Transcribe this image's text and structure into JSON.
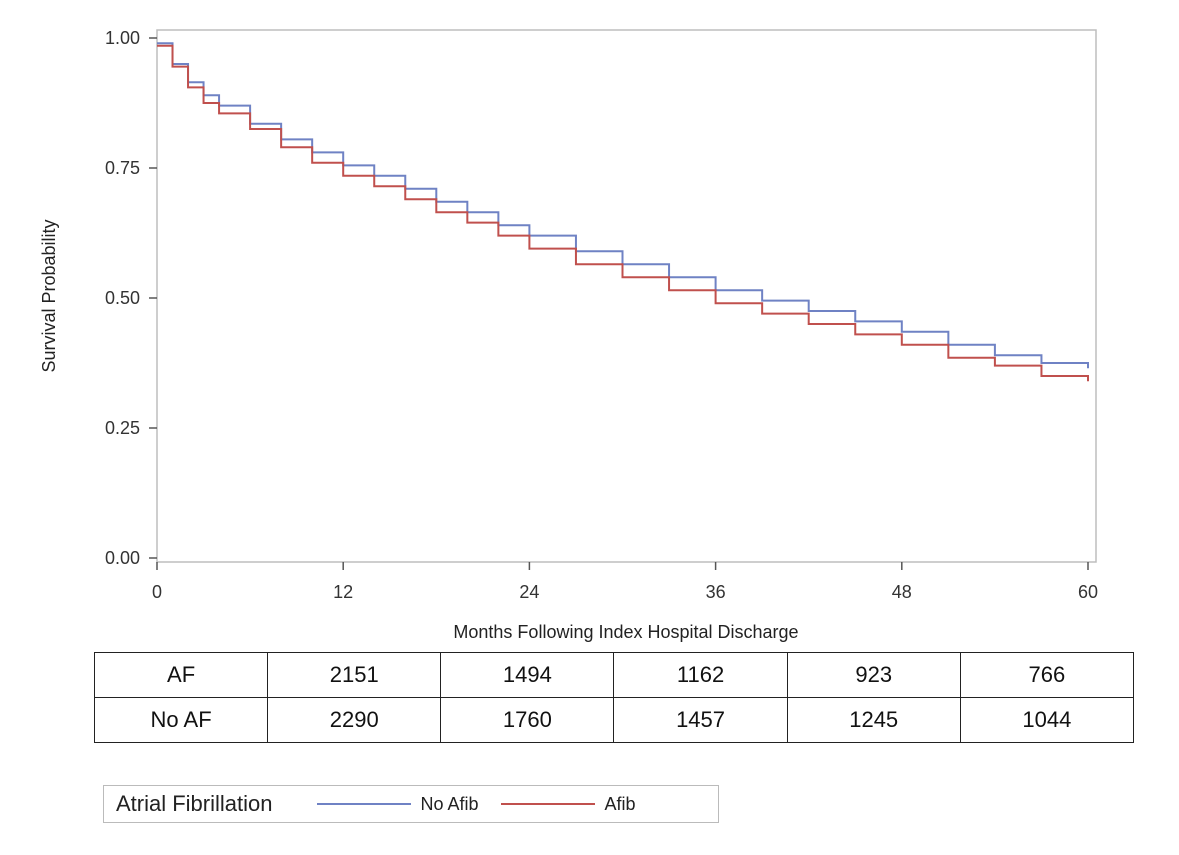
{
  "chart_data": {
    "type": "line",
    "step": true,
    "xlabel": "Months Following Index Hospital Discharge",
    "ylabel": "Survival Probability",
    "xlim": [
      0,
      60
    ],
    "ylim": [
      0,
      1
    ],
    "xticks": [
      0,
      12,
      24,
      36,
      48,
      60
    ],
    "yticks": [
      "0.00",
      "0.25",
      "0.50",
      "0.75",
      "1.00"
    ],
    "grid": false,
    "series": [
      {
        "name": "No Afib",
        "color": "#6f82c4",
        "x": [
          0,
          1,
          2,
          3,
          4,
          6,
          8,
          10,
          12,
          14,
          16,
          18,
          20,
          22,
          24,
          27,
          30,
          33,
          36,
          39,
          42,
          45,
          48,
          51,
          54,
          57,
          60
        ],
        "y": [
          0.99,
          0.95,
          0.915,
          0.89,
          0.87,
          0.835,
          0.805,
          0.78,
          0.755,
          0.735,
          0.71,
          0.685,
          0.665,
          0.64,
          0.62,
          0.59,
          0.565,
          0.54,
          0.515,
          0.495,
          0.475,
          0.455,
          0.435,
          0.41,
          0.39,
          0.375,
          0.365
        ]
      },
      {
        "name": "Afib",
        "color": "#c0504d",
        "x": [
          0,
          1,
          2,
          3,
          4,
          6,
          8,
          10,
          12,
          14,
          16,
          18,
          20,
          22,
          24,
          27,
          30,
          33,
          36,
          39,
          42,
          45,
          48,
          51,
          54,
          57,
          60
        ],
        "y": [
          0.985,
          0.945,
          0.905,
          0.875,
          0.855,
          0.825,
          0.79,
          0.76,
          0.735,
          0.715,
          0.69,
          0.665,
          0.645,
          0.62,
          0.595,
          0.565,
          0.54,
          0.515,
          0.49,
          0.47,
          0.45,
          0.43,
          0.41,
          0.385,
          0.37,
          0.35,
          0.34
        ]
      }
    ],
    "legend": {
      "title": "Atrial Fibrillation",
      "position": "bottom-left",
      "entries": [
        "No Afib",
        "Afib"
      ]
    }
  },
  "risk_table": {
    "rows": [
      {
        "label": "AF",
        "values": [
          "2151",
          "1494",
          "1162",
          "923",
          "766"
        ]
      },
      {
        "label": "No AF",
        "values": [
          "2290",
          "1760",
          "1457",
          "1245",
          "1044"
        ]
      }
    ]
  }
}
